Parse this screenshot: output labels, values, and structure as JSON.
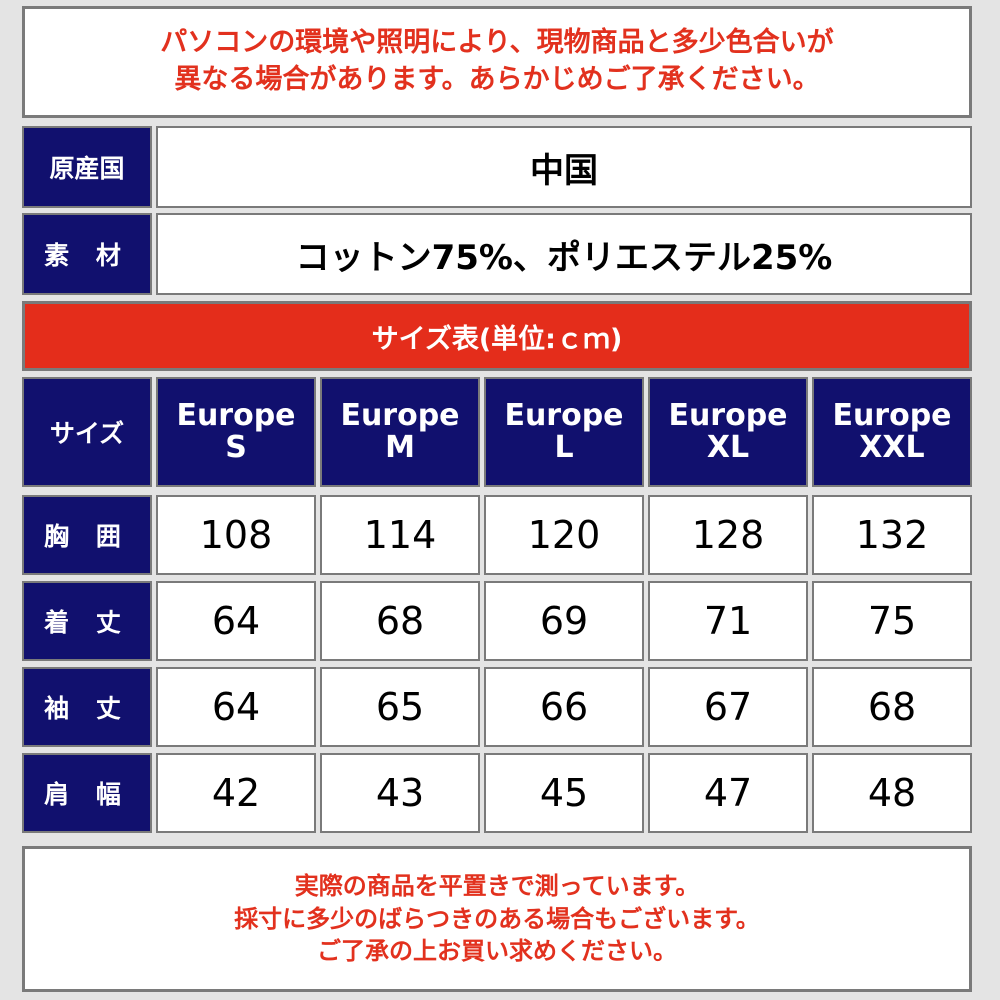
{
  "notice_top": [
    "パソコンの環境や照明により、現物商品と多少色合いが",
    "異なる場合があります。あらかじめご了承ください。"
  ],
  "origin": {
    "label": "原産国",
    "value": "中国"
  },
  "material": {
    "label": "素 材",
    "value": "コットン75%、ポリエステル25%"
  },
  "size_table_title": "サイズ表(単位:ｃｍ)",
  "size_header": {
    "label": "サイズ",
    "sizes": [
      {
        "line1": "Europe",
        "line2": "S"
      },
      {
        "line1": "Europe",
        "line2": "M"
      },
      {
        "line1": "Europe",
        "line2": "L"
      },
      {
        "line1": "Europe",
        "line2": "XL"
      },
      {
        "line1": "Europe",
        "line2": "XXL"
      }
    ]
  },
  "rows": [
    {
      "label": "胸 囲",
      "values": [
        "108",
        "114",
        "120",
        "128",
        "132"
      ]
    },
    {
      "label": "着 丈",
      "values": [
        "64",
        "68",
        "69",
        "71",
        "75"
      ]
    },
    {
      "label": "袖 丈",
      "values": [
        "64",
        "65",
        "66",
        "67",
        "68"
      ]
    },
    {
      "label": "肩 幅",
      "values": [
        "42",
        "43",
        "45",
        "47",
        "48"
      ]
    }
  ],
  "notice_bottom": [
    "実際の商品を平置きで測っています。",
    "採寸に多少のばらつきのある場合もございます。",
    "ご了承の上お買い求めください。"
  ]
}
